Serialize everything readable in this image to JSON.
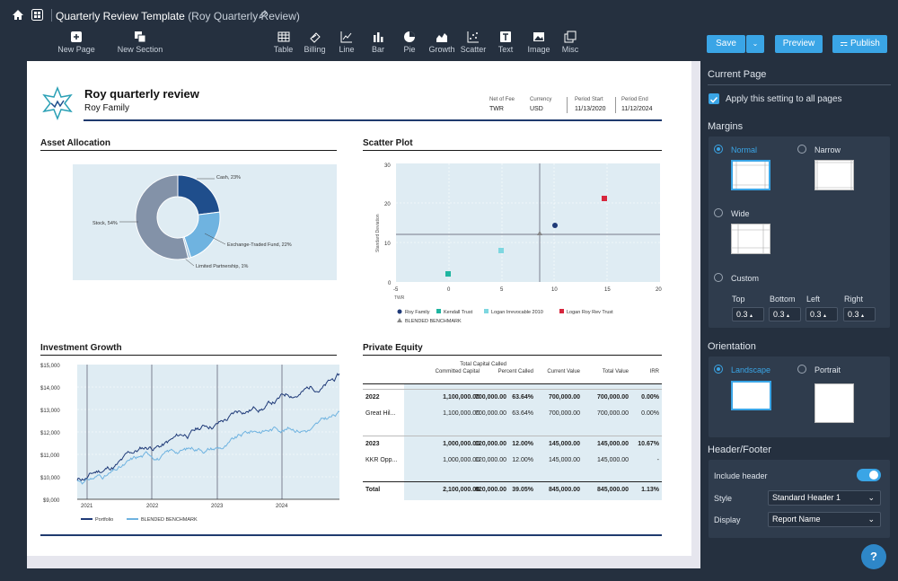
{
  "topbar": {
    "title": "Quarterly Review Template",
    "subtitle": "(Roy Quarterly Review)"
  },
  "toolbar": {
    "new_page": "New Page",
    "new_section": "New Section",
    "items": [
      "Table",
      "Billing",
      "Line",
      "Bar",
      "Pie",
      "Growth",
      "Scatter",
      "Text",
      "Image",
      "Misc"
    ],
    "save": "Save",
    "preview": "Preview",
    "publish": "Publish"
  },
  "report": {
    "title": "Roy quarterly review",
    "subtitle": "Roy Family",
    "net_of_fee_label": "Net of Fee",
    "net_of_fee": "TWR",
    "currency_label": "Currency",
    "currency": "USD",
    "period_start_label": "Period Start",
    "period_start": "11/13/2020",
    "period_end_label": "Period End",
    "period_end": "11/12/2024"
  },
  "asset_allocation": {
    "title": "Asset Allocation",
    "slices": [
      {
        "label": "Cash, 23%",
        "value": 23,
        "color": "#1f4e8c"
      },
      {
        "label": "Exchange-Traded Fund, 22%",
        "value": 22,
        "color": "#6fb3e0"
      },
      {
        "label": "Limited Partnership, 1%",
        "value": 1,
        "color": "#a8c8e0"
      },
      {
        "label": "Stock, 54%",
        "value": 54,
        "color": "#8392a8"
      }
    ]
  },
  "scatter": {
    "title": "Scatter Plot",
    "ylabel": "Standard Deviation",
    "xlabel": "TWR",
    "xticks": [
      "-5",
      "0",
      "5",
      "10",
      "15",
      "20"
    ],
    "yticks": [
      "30",
      "20",
      "10",
      "0"
    ],
    "legend": [
      "Roy Family",
      "Kendall Trust",
      "Logan Irrevocable 2010",
      "Logan Roy Rev Trust",
      "BLENDED BENCHMARK"
    ]
  },
  "growth": {
    "title": "Investment Growth",
    "yticks": [
      "$15,000",
      "$14,000",
      "$13,000",
      "$12,000",
      "$11,000",
      "$10,000",
      "$9,000"
    ],
    "xticks": [
      "2021",
      "2022",
      "2023",
      "2024"
    ],
    "legend": [
      "Portfolio",
      "BLENDED BENCHMARK"
    ]
  },
  "private_equity": {
    "title": "Private Equity",
    "headers": [
      "Committed Capital",
      "Total Capital Called",
      "Percent Called",
      "Current Value",
      "Total Value",
      "IRR"
    ],
    "rows": [
      {
        "name": "2022",
        "bold": true,
        "cells": [
          "1,100,000.00",
          "700,000.00",
          "63.64%",
          "700,000.00",
          "700,000.00",
          "0.00%"
        ]
      },
      {
        "name": "Great Hil...",
        "bold": false,
        "cells": [
          "1,100,000.00",
          "700,000.00",
          "63.64%",
          "700,000.00",
          "700,000.00",
          "0.00%"
        ]
      },
      {
        "name": "2023",
        "bold": true,
        "cells": [
          "1,000,000.00",
          "120,000.00",
          "12.00%",
          "145,000.00",
          "145,000.00",
          "10.67%"
        ]
      },
      {
        "name": "KKR Opp...",
        "bold": false,
        "cells": [
          "1,000,000.00",
          "120,000.00",
          "12.00%",
          "145,000.00",
          "145,000.00",
          "-"
        ]
      },
      {
        "name": "Total",
        "bold": true,
        "cells": [
          "2,100,000.00",
          "820,000.00",
          "39.05%",
          "845,000.00",
          "845,000.00",
          "1.13%"
        ]
      }
    ]
  },
  "sidebar": {
    "current_page": "Current Page",
    "apply_all": "Apply this setting to all pages",
    "margins": "Margins",
    "m_normal": "Normal",
    "m_narrow": "Narrow",
    "m_wide": "Wide",
    "m_custom": "Custom",
    "top": "Top",
    "bottom": "Bottom",
    "left": "Left",
    "right": "Right",
    "top_v": "0.3",
    "bottom_v": "0.3",
    "left_v": "0.3",
    "right_v": "0.3",
    "orientation": "Orientation",
    "landscape": "Landscape",
    "portrait": "Portrait",
    "header_footer": "Header/Footer",
    "include_header": "Include header",
    "style": "Style",
    "style_v": "Standard Header 1",
    "display": "Display",
    "display_v": "Report Name",
    "help": "?"
  }
}
